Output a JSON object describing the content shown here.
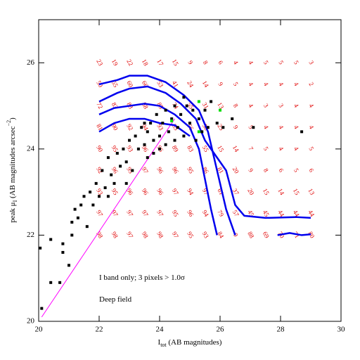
{
  "chart_data": {
    "type": "scatter",
    "xlim": [
      20,
      30
    ],
    "ylim": [
      20,
      27
    ],
    "xticks": [
      20,
      22,
      24,
      26,
      28,
      30
    ],
    "yticks": [
      20,
      22,
      24,
      26
    ],
    "xlabel": [
      "I",
      "tot",
      " (AB magnitudes)"
    ],
    "ylabel": [
      "peak μ",
      "I",
      "  (AB magnitudes arcsec",
      "−2",
      ")"
    ],
    "annotations": [
      {
        "text": "I band only; 3 pixels > 1.0σ",
        "x": 22,
        "y": 21
      },
      {
        "text": "Deep field",
        "x": 22,
        "y": 20.5
      }
    ],
    "points": [
      {
        "color": "#000000",
        "x": [
          20.05,
          20.1,
          20.4,
          20.4,
          20.7,
          20.8,
          20.8,
          21,
          21.1,
          21.1,
          21.2,
          21.3,
          21.4,
          21.5,
          21.6,
          21.7,
          21.8,
          21.9,
          22,
          22.1,
          22.2,
          22.3,
          22.4,
          22.5,
          22.6,
          22.7,
          22.8,
          22.9,
          23,
          23.1,
          23.2,
          23.3,
          23.4,
          23.5,
          23.6,
          23.6,
          23.7,
          23.8,
          23.9,
          24,
          24,
          24.1,
          24.2,
          24.3,
          24.4,
          24.5,
          24.6,
          24.7,
          24.8,
          24.9,
          25,
          25.1,
          25.2,
          25.3,
          25.4,
          25.5,
          25.6,
          25.7,
          25.9,
          26.1,
          26.4,
          27.1,
          28.7,
          24.5,
          23.8,
          24.2,
          22.9,
          22.3,
          23.5,
          24.8
        ],
        "values": [
          21.7,
          20.3,
          20.9,
          21.9,
          20.9,
          21.6,
          21.8,
          21.3,
          22.0,
          22.3,
          22.6,
          22.4,
          22.7,
          22.9,
          22.2,
          23.0,
          22.7,
          23.2,
          22.9,
          23.5,
          23.1,
          23.8,
          23.4,
          23.2,
          23.9,
          23.6,
          24.0,
          23.7,
          24.2,
          23.5,
          24.3,
          24.0,
          24.5,
          24.1,
          24.4,
          23.8,
          24.6,
          24.2,
          24.8,
          24.3,
          24.0,
          24.6,
          24.9,
          24.4,
          24.7,
          25.0,
          24.5,
          24.8,
          24.3,
          25.0,
          24.6,
          24.9,
          24.2,
          24.7,
          24.4,
          24.9,
          24.5,
          25.1,
          24.6,
          24.5,
          24.7,
          24.5,
          24.4,
          24.2,
          23.9,
          24.1,
          23.2,
          22.9,
          24.6,
          25.2
        ]
      },
      {
        "color": "#00dd00",
        "x": [
          24.4,
          25.3,
          26,
          25.3
        ],
        "values": [
          24.65,
          25.1,
          24.9,
          24.4
        ]
      }
    ],
    "lines": [
      {
        "color": "#ff00ff",
        "width": 1,
        "x": [
          20.1,
          24.5
        ],
        "values": [
          20.1,
          24.7
        ]
      },
      {
        "color": "#0000ee",
        "width": 2.5,
        "x": [
          22,
          22.6,
          23,
          23.6,
          24.2,
          24.8,
          25.3,
          25.6,
          25.9,
          26.2,
          26.5
        ],
        "values": [
          25.5,
          25.6,
          25.7,
          25.7,
          25.55,
          25.25,
          24.9,
          24.4,
          23.5,
          22.6,
          22.0
        ]
      },
      {
        "color": "#0000ee",
        "width": 2.5,
        "x": [
          22,
          22.6,
          23,
          23.6,
          24.2,
          24.7,
          25.2,
          25.5,
          25.8,
          26.2,
          26.5,
          26.8,
          27.5,
          28.5,
          29
        ],
        "values": [
          25.1,
          25.3,
          25.4,
          25.45,
          25.3,
          25.05,
          24.7,
          24.2,
          23.9,
          23.5,
          22.7,
          22.45,
          22.4,
          22.42,
          22.4
        ]
      },
      {
        "color": "#0000ee",
        "width": 2.5,
        "x": [
          22,
          22.5,
          23,
          23.5,
          24,
          24.5,
          25,
          25.3,
          25.5,
          25.7,
          25.9
        ],
        "values": [
          24.8,
          24.95,
          25,
          25.05,
          25,
          24.8,
          24.5,
          24.0,
          23.3,
          22.6,
          22.0
        ]
      },
      {
        "color": "#0000ee",
        "width": 2.5,
        "x": [
          22,
          22.5,
          23,
          23.5,
          24,
          24.5,
          25
        ],
        "values": [
          24.4,
          24.6,
          24.7,
          24.7,
          24.6,
          24.55,
          24.3
        ]
      },
      {
        "color": "#0000ee",
        "width": 2.5,
        "x": [
          27.9,
          28.3,
          28.7,
          29
        ],
        "values": [
          22.0,
          22.05,
          22.0,
          22.02
        ]
      }
    ],
    "grid_labels": {
      "x": [
        22,
        22.5,
        23,
        23.5,
        24,
        24.5,
        25,
        25.5,
        26,
        26.5,
        27,
        27.5,
        28,
        28.5,
        29
      ],
      "y": [
        26,
        25.5,
        25,
        24.5,
        24,
        23.5,
        23,
        22.5,
        22
      ],
      "values": [
        [
          23,
          19,
          22,
          18,
          17,
          15,
          9,
          8,
          6,
          4,
          4,
          5,
          5,
          5,
          3
        ],
        [
          50,
          55,
          60,
          66,
          53,
          41,
          24,
          14,
          9,
          5,
          4,
          4,
          4,
          4,
          2
        ],
        [
          72,
          83,
          83,
          88,
          85,
          74,
          55,
          31,
          13,
          8,
          4,
          3,
          3,
          4,
          4
        ],
        [
          81,
          90,
          92,
          94,
          93,
          85,
          56,
          56,
          25,
          9,
          5,
          4,
          4,
          4,
          4
        ],
        [
          90,
          95,
          93,
          96,
          96,
          89,
          83,
          55,
          15,
          14,
          7,
          5,
          4,
          4,
          5
        ],
        [
          92,
          96,
          95,
          97,
          96,
          96,
          95,
          86,
          81,
          20,
          9,
          8,
          6,
          5,
          6
        ],
        [
          93,
          95,
          96,
          96,
          96,
          97,
          94,
          97,
          61,
          37,
          20,
          15,
          14,
          15,
          13
        ],
        [
          97,
          97,
          97,
          97,
          97,
          95,
          96,
          94,
          79,
          57,
          45,
          45,
          44,
          44,
          44
        ],
        [
          98,
          98,
          97,
          98,
          98,
          97,
          95,
          93,
          84,
          0,
          88,
          69,
          70,
          71,
          80
        ]
      ]
    }
  }
}
